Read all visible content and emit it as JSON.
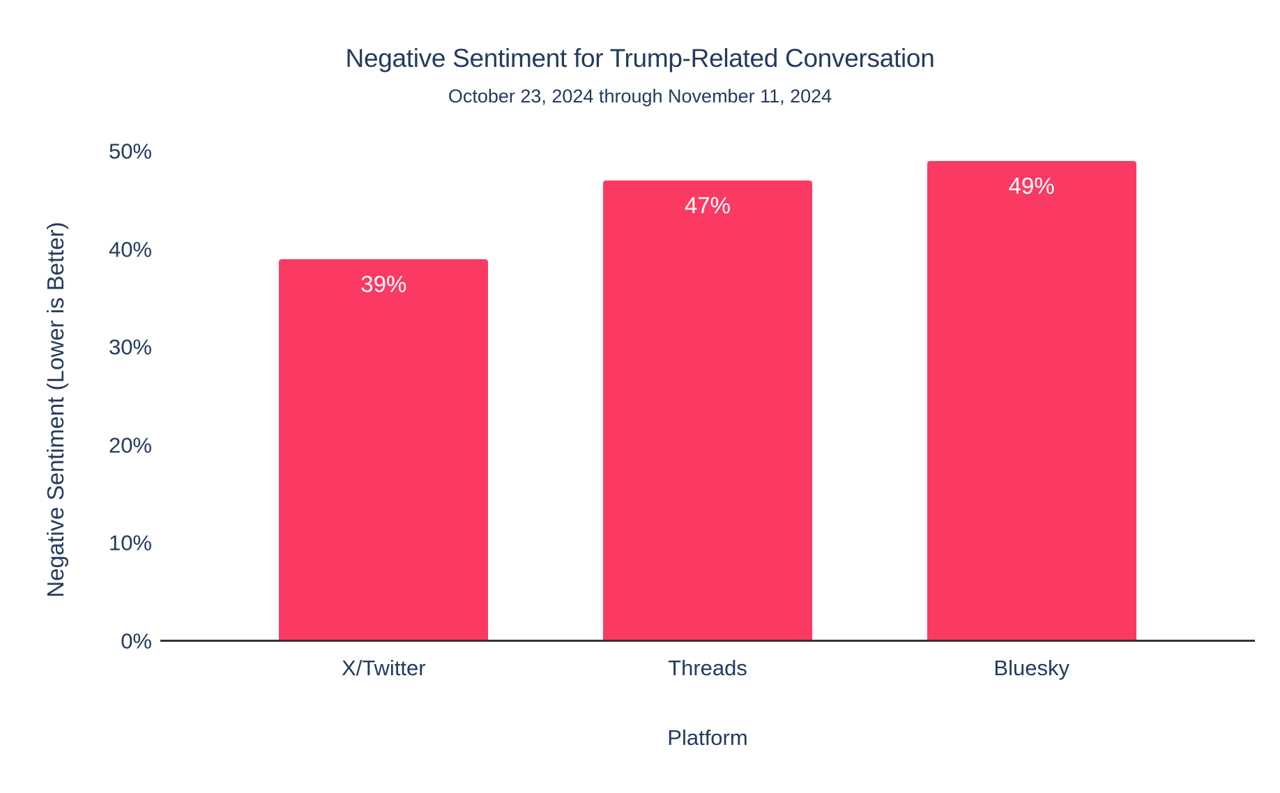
{
  "colors": {
    "background": "#ffffff",
    "bar": "#fb3a63",
    "navy_text": "#243a5e",
    "axis_line": "#333333",
    "value_label": "#ffffff"
  },
  "chart_data": {
    "type": "bar",
    "title": "Negative Sentiment for Trump-Related Conversation",
    "subtitle": "October 23, 2024 through November 11, 2024",
    "categories": [
      "X/Twitter",
      "Threads",
      "Bluesky"
    ],
    "values": [
      39,
      47,
      49
    ],
    "value_labels": [
      "39%",
      "47%",
      "49%"
    ],
    "xlabel": "Platform",
    "ylabel": "Negative Sentiment (Lower is Better)",
    "ylim": [
      0,
      50
    ],
    "yticks": [
      0,
      10,
      20,
      30,
      40,
      50
    ],
    "ytick_labels": [
      "0%",
      "10%",
      "20%",
      "30%",
      "40%",
      "50%"
    ],
    "grid": false,
    "legend": false,
    "bar_color": "#fb3a63",
    "value_label_position": "inside-top",
    "value_label_color": "#ffffff"
  }
}
